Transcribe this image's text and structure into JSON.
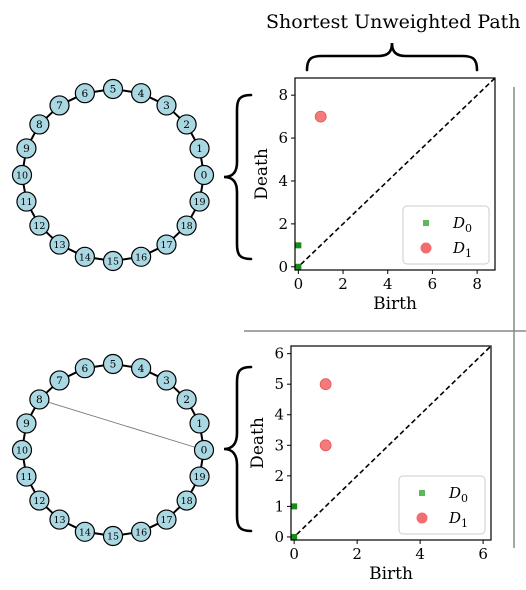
{
  "figure": {
    "title": "Shortest Unweighted Path"
  },
  "graphs": [
    {
      "nodes": [
        "0",
        "1",
        "2",
        "3",
        "4",
        "5",
        "6",
        "7",
        "8",
        "9",
        "10",
        "11",
        "12",
        "13",
        "14",
        "15",
        "16",
        "17",
        "18",
        "19"
      ],
      "edges": "cycle",
      "extra_edges": []
    },
    {
      "nodes": [
        "0",
        "1",
        "2",
        "3",
        "4",
        "5",
        "6",
        "7",
        "8",
        "9",
        "10",
        "11",
        "12",
        "13",
        "14",
        "15",
        "16",
        "17",
        "18",
        "19"
      ],
      "edges": "cycle",
      "extra_edges": [
        [
          "8",
          "0"
        ]
      ]
    }
  ],
  "chart_data": [
    {
      "type": "scatter",
      "xlabel": "Birth",
      "ylabel": "Death",
      "xlim": [
        -0.15,
        8.8
      ],
      "ylim": [
        -0.15,
        8.8
      ],
      "xticks": [
        "0",
        "2",
        "4",
        "6",
        "8"
      ],
      "yticks": [
        "0",
        "2",
        "4",
        "6",
        "8"
      ],
      "diagonal": "dashed",
      "legend_position": "bottom-right",
      "series": [
        {
          "name": "D0",
          "marker": "square",
          "color": "#1a8a1a",
          "points": [
            [
              0,
              1
            ],
            [
              0,
              0
            ]
          ]
        },
        {
          "name": "D1",
          "marker": "circle",
          "color": "#f26d6d",
          "points": [
            [
              1,
              7
            ]
          ]
        }
      ]
    },
    {
      "type": "scatter",
      "xlabel": "Birth",
      "ylabel": "Death",
      "xlim": [
        -0.1,
        6.25
      ],
      "ylim": [
        -0.1,
        6.25
      ],
      "xticks": [
        "0",
        "2",
        "4",
        "6"
      ],
      "yticks": [
        "0",
        "1",
        "2",
        "3",
        "4",
        "5",
        "6"
      ],
      "diagonal": "dashed",
      "legend_position": "bottom-right",
      "series": [
        {
          "name": "D0",
          "marker": "square",
          "color": "#1a8a1a",
          "points": [
            [
              0,
              1
            ],
            [
              0,
              0
            ]
          ]
        },
        {
          "name": "D1",
          "marker": "circle",
          "color": "#f26d6d",
          "points": [
            [
              1,
              5
            ],
            [
              1,
              3
            ]
          ]
        }
      ]
    }
  ],
  "colors": {
    "node_fill": "#a9d8e3",
    "node_stroke": "#000000",
    "separator": "#888888"
  }
}
